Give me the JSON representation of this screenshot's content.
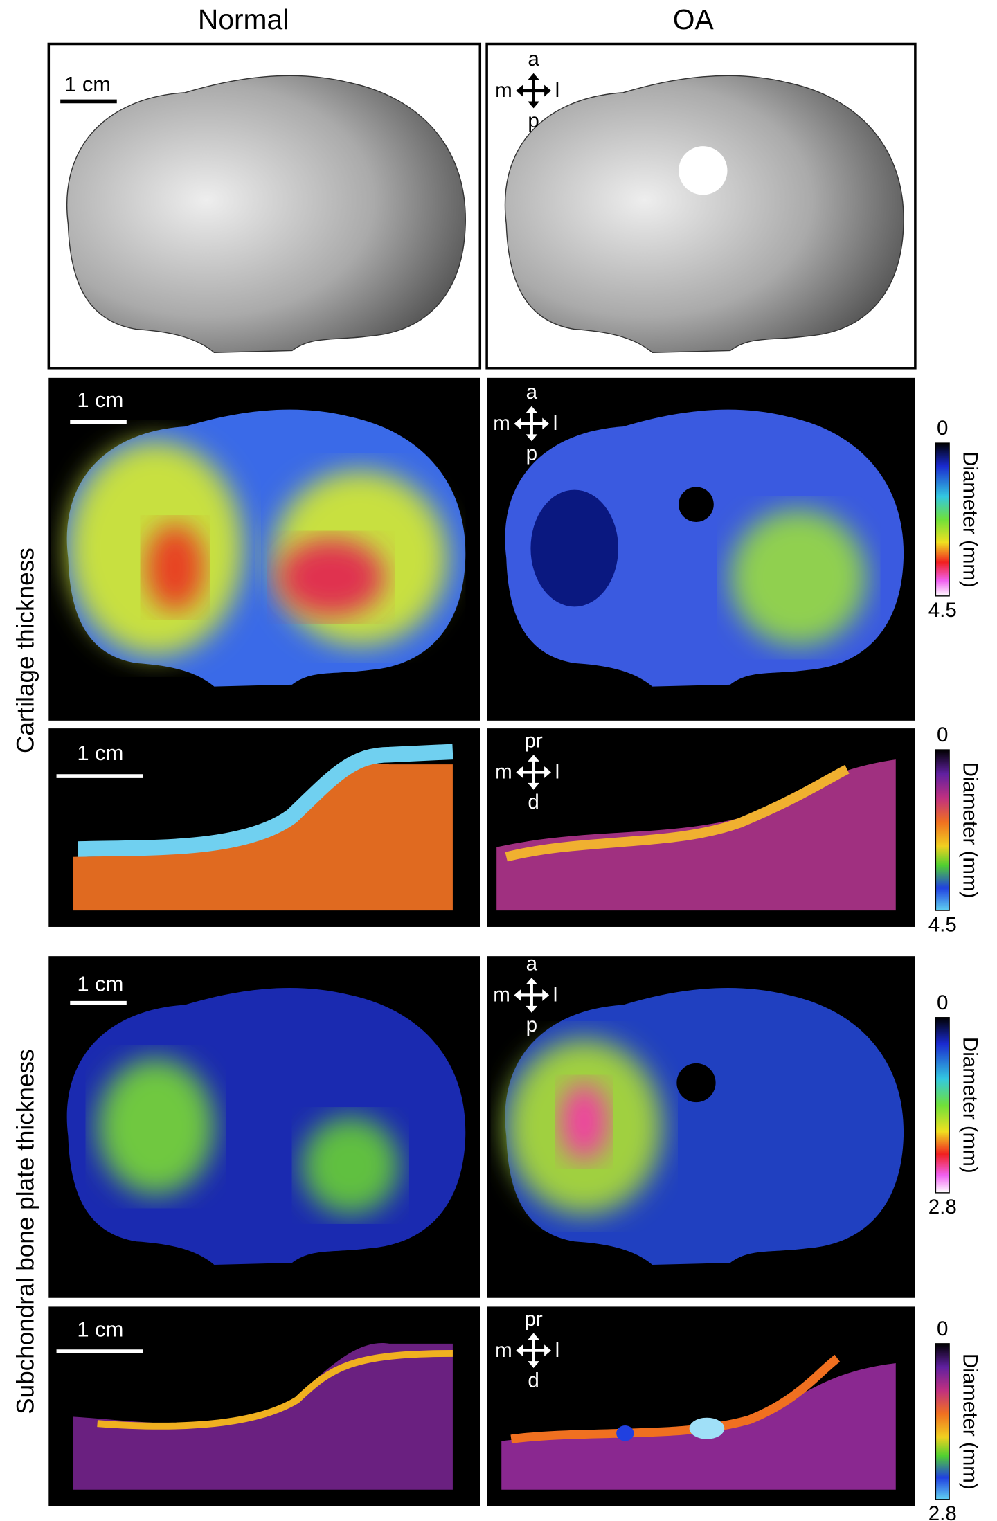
{
  "columns": [
    "Normal",
    "OA"
  ],
  "row_labels": [
    "Cartilage thickness",
    "Subchondral bone plate thickness"
  ],
  "panels": [
    {
      "scale_bar": "1 cm",
      "orientation": [
        "a",
        "m",
        "l",
        "p"
      ]
    },
    {
      "scale_bar": "1 cm",
      "orientation": [
        "a",
        "m",
        "l",
        "p"
      ]
    },
    {
      "scale_bar": "1 cm",
      "orientation": [
        "pr",
        "m",
        "l",
        "d"
      ]
    },
    {
      "scale_bar": "1 cm",
      "orientation": [
        "a",
        "m",
        "l",
        "p"
      ]
    },
    {
      "scale_bar": "1 cm",
      "orientation": [
        "pr",
        "m",
        "l",
        "d"
      ]
    }
  ],
  "colorbars": [
    {
      "title": "Diameter (mm)",
      "min": 0,
      "max": 4.5
    },
    {
      "title": "Diameter (mm)",
      "min": 0,
      "max": 4.5
    },
    {
      "title": "Diameter (mm)",
      "min": 0,
      "max": 2.8
    },
    {
      "title": "Diameter (mm)",
      "min": 0,
      "max": 2.8
    }
  ]
}
